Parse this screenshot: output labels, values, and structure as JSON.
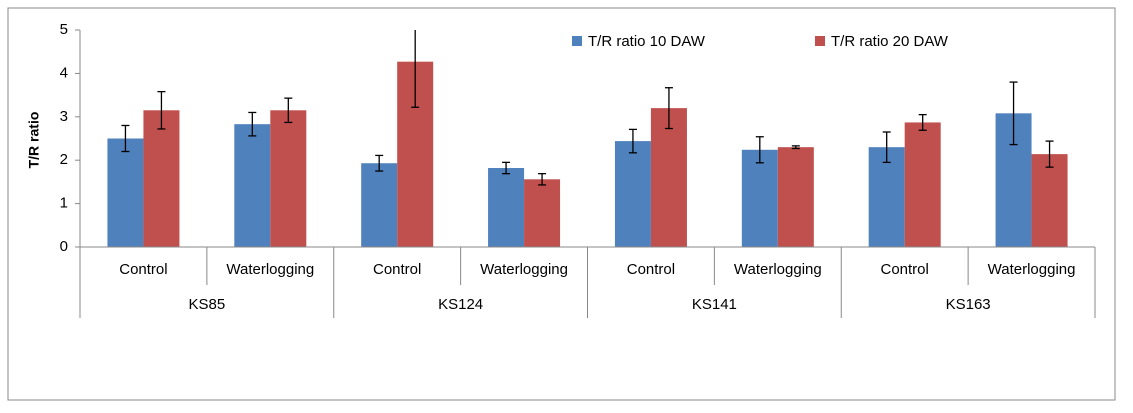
{
  "chart_data": {
    "type": "bar",
    "ylabel": "T/R ratio",
    "categories": [
      "Control",
      "Waterlogging",
      "Control",
      "Waterlogging",
      "Control",
      "Waterlogging",
      "Control",
      "Waterlogging"
    ],
    "groups": [
      "KS85",
      "KS124",
      "KS141",
      "KS163"
    ],
    "series": [
      {
        "name": "T/R ratio 10 DAW",
        "color": "#4f81bd",
        "values": [
          2.5,
          2.83,
          1.93,
          1.82,
          2.44,
          2.24,
          2.3,
          3.08
        ],
        "errors": [
          0.3,
          0.27,
          0.18,
          0.13,
          0.27,
          0.3,
          0.35,
          0.72
        ]
      },
      {
        "name": "T/R ratio 20 DAW",
        "color": "#c0504d",
        "values": [
          3.15,
          3.15,
          4.27,
          1.56,
          3.2,
          2.3,
          2.87,
          2.14
        ],
        "errors": [
          0.43,
          0.28,
          1.05,
          0.13,
          0.47,
          0.03,
          0.18,
          0.3
        ]
      }
    ],
    "ylim": [
      0,
      5
    ],
    "yticks": [
      0,
      1,
      2,
      3,
      4,
      5
    ],
    "grid": false,
    "legend": "top"
  }
}
